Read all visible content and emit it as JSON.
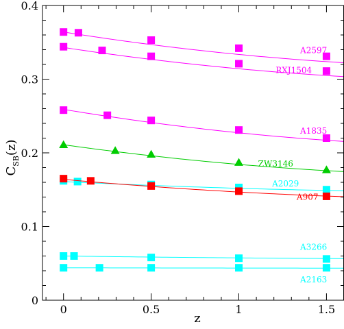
{
  "chart_data": {
    "type": "scatter",
    "xlabel": "z",
    "ylabel_main": "C",
    "ylabel_sub": "SB",
    "ylabel_suffix": "(z)",
    "xlim": [
      -0.12,
      1.6
    ],
    "ylim": [
      0,
      0.4
    ],
    "x_ticks": [
      0,
      0.5,
      1,
      1.5
    ],
    "x_tick_labels": [
      "0",
      "0.5",
      "1",
      "1.5"
    ],
    "y_ticks": [
      0,
      0.1,
      0.2,
      0.3,
      0.4
    ],
    "y_tick_labels": [
      "0",
      "0.1",
      "0.2",
      "0.3",
      "0.4"
    ],
    "grid": false,
    "series": [
      {
        "name": "A2597",
        "color": "#ff00ff",
        "marker": "square",
        "label_at": [
          1.35,
          0.339
        ],
        "points": [
          [
            0,
            0.364
          ],
          [
            0.085,
            0.363
          ],
          [
            0.5,
            0.353
          ],
          [
            1.0,
            0.342
          ],
          [
            1.5,
            0.331
          ]
        ],
        "fit": [
          0.364,
          0.3223
        ]
      },
      {
        "name": "RXJ1504",
        "color": "#ff00ff",
        "marker": "square",
        "label_at": [
          1.21,
          0.312
        ],
        "points": [
          [
            0,
            0.344
          ],
          [
            0.22,
            0.339
          ],
          [
            0.5,
            0.331
          ],
          [
            1.0,
            0.321
          ],
          [
            1.5,
            0.311
          ]
        ],
        "fit": [
          0.343,
          0.3035
        ]
      },
      {
        "name": "A1835",
        "color": "#ff00ff",
        "marker": "square",
        "label_at": [
          1.35,
          0.23
        ],
        "points": [
          [
            0,
            0.258
          ],
          [
            0.25,
            0.251
          ],
          [
            0.5,
            0.244
          ],
          [
            1.0,
            0.231
          ],
          [
            1.5,
            0.22
          ]
        ],
        "fit": [
          0.259,
          0.2155
        ]
      },
      {
        "name": "ZW3146",
        "color": "#00cc00",
        "marker": "triangle",
        "label_at": [
          1.11,
          0.185
        ],
        "points": [
          [
            0,
            0.211
          ],
          [
            0.295,
            0.203
          ],
          [
            0.5,
            0.198
          ],
          [
            1.0,
            0.187
          ],
          [
            1.5,
            0.177
          ]
        ],
        "fit": [
          0.211,
          0.1745
        ]
      },
      {
        "name": "A2029",
        "color": "#00ffff",
        "marker": "square",
        "label_at": [
          1.19,
          0.158
        ],
        "points": [
          [
            0,
            0.162
          ],
          [
            0.08,
            0.161
          ],
          [
            0.5,
            0.157
          ],
          [
            1.0,
            0.153
          ],
          [
            1.5,
            0.15
          ]
        ],
        "fit": [
          0.161,
          0.1485
        ]
      },
      {
        "name": "A907",
        "color": "#ff0000",
        "marker": "square",
        "label_at": [
          1.33,
          0.14
        ],
        "points": [
          [
            0,
            0.165
          ],
          [
            0.155,
            0.162
          ],
          [
            0.5,
            0.155
          ],
          [
            1.0,
            0.148
          ],
          [
            1.5,
            0.141
          ]
        ],
        "fit": [
          0.164,
          0.1405
        ]
      },
      {
        "name": "A3266",
        "color": "#00ffff",
        "marker": "square",
        "label_at": [
          1.35,
          0.072
        ],
        "points": [
          [
            0,
            0.06
          ],
          [
            0.06,
            0.06
          ],
          [
            0.5,
            0.058
          ],
          [
            1.0,
            0.057
          ],
          [
            1.5,
            0.056
          ]
        ],
        "fit": [
          0.06,
          0.0565
        ]
      },
      {
        "name": "A2163",
        "color": "#00ffff",
        "marker": "square",
        "label_at": [
          1.35,
          0.028
        ],
        "points": [
          [
            0,
            0.044
          ],
          [
            0.205,
            0.044
          ],
          [
            0.5,
            0.044
          ],
          [
            1.0,
            0.044
          ],
          [
            1.5,
            0.044
          ]
        ],
        "fit": [
          0.044,
          0.0435
        ]
      }
    ]
  }
}
